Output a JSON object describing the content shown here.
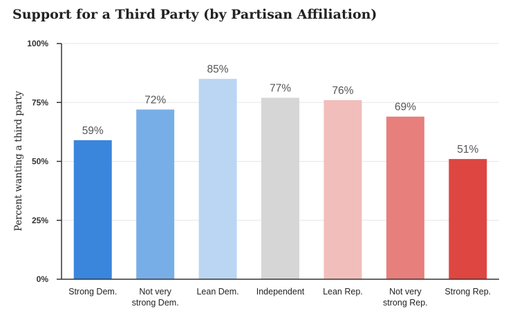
{
  "chart_data": {
    "type": "bar",
    "title": "Support for a Third Party (by Partisan Affiliation)",
    "ylabel": "Percent wanting a third party",
    "xlabel": "",
    "ylim": [
      0,
      100
    ],
    "y_ticks": [
      0,
      25,
      50,
      75,
      100
    ],
    "y_tick_labels": [
      "0%",
      "25%",
      "50%",
      "75%",
      "100%"
    ],
    "categories": [
      [
        "Strong Dem."
      ],
      [
        "Not very",
        "strong Dem."
      ],
      [
        "Lean Dem."
      ],
      [
        "Independent"
      ],
      [
        "Lean Rep."
      ],
      [
        "Not very",
        "strong Rep."
      ],
      [
        "Strong Rep."
      ]
    ],
    "values": [
      59,
      72,
      85,
      77,
      76,
      69,
      51
    ],
    "value_labels": [
      "59%",
      "72%",
      "85%",
      "77%",
      "76%",
      "69%",
      "51%"
    ],
    "colors": [
      "#3a86dc",
      "#78aee8",
      "#bad6f3",
      "#d6d6d6",
      "#f2bebb",
      "#e77f7c",
      "#de4641"
    ],
    "grid": true
  }
}
